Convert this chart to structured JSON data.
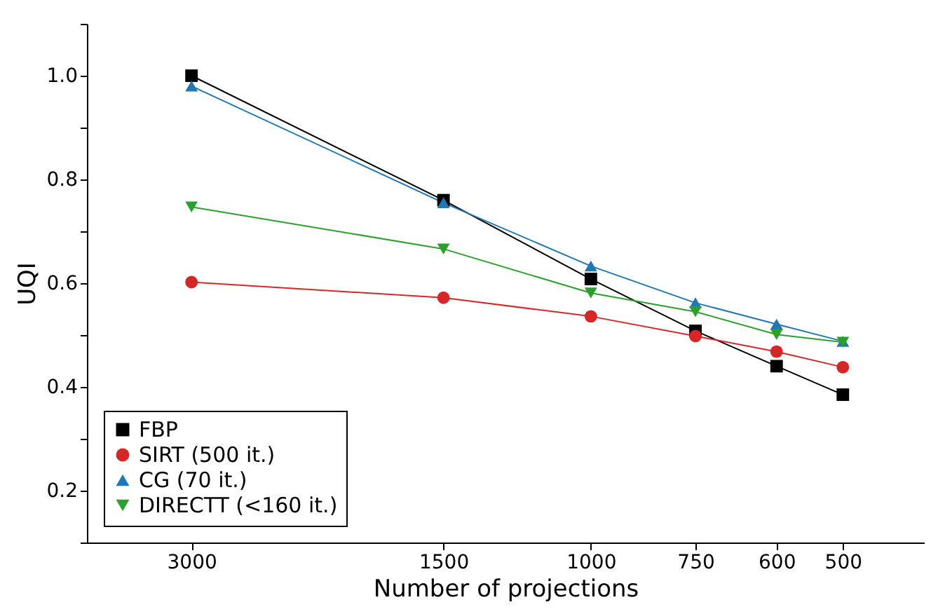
{
  "chart_data": {
    "type": "line",
    "xlabel": "Number of projections",
    "ylabel": "UQI",
    "x": [
      3000,
      1500,
      1000,
      750,
      600,
      500
    ],
    "log": "x",
    "xlim": [
      4000,
      400
    ],
    "xticks": [
      3000,
      1500,
      1000,
      750,
      600,
      500
    ],
    "ylim": [
      0.1,
      1.1
    ],
    "yticks": [
      {
        "value": 0.1,
        "label": null
      },
      0.2,
      {
        "value": 0.3,
        "label": null
      },
      0.4,
      {
        "value": 0.5,
        "label": null
      },
      0.6,
      {
        "value": 0.7,
        "label": null
      },
      0.8,
      {
        "value": 0.9,
        "label": null
      },
      {
        "value": 1.0,
        "label": "1.0"
      },
      {
        "value": 1.1,
        "label": null
      }
    ],
    "grid": false,
    "legend": "bottom left",
    "line_style": "solid",
    "series": [
      {
        "name": "FBP",
        "color": "#000000",
        "marker": "square",
        "values": [
          1.0,
          0.76,
          0.608,
          0.508,
          0.44,
          0.385
        ]
      },
      {
        "name": "SIRT (500 it.)",
        "color": "#d62728",
        "marker": "circle",
        "values": [
          0.602,
          0.572,
          0.536,
          0.498,
          0.468,
          0.438
        ]
      },
      {
        "name": "CG (70 it.)",
        "color": "#1f77b4",
        "marker": "triangle",
        "values": [
          0.98,
          0.755,
          0.633,
          0.562,
          0.521,
          0.488
        ]
      },
      {
        "name": "DIRECTT (<160 it.)",
        "color": "#2ca02c",
        "marker": "triangle-down",
        "values": [
          0.747,
          0.666,
          0.581,
          0.545,
          0.501,
          0.486
        ]
      }
    ]
  }
}
